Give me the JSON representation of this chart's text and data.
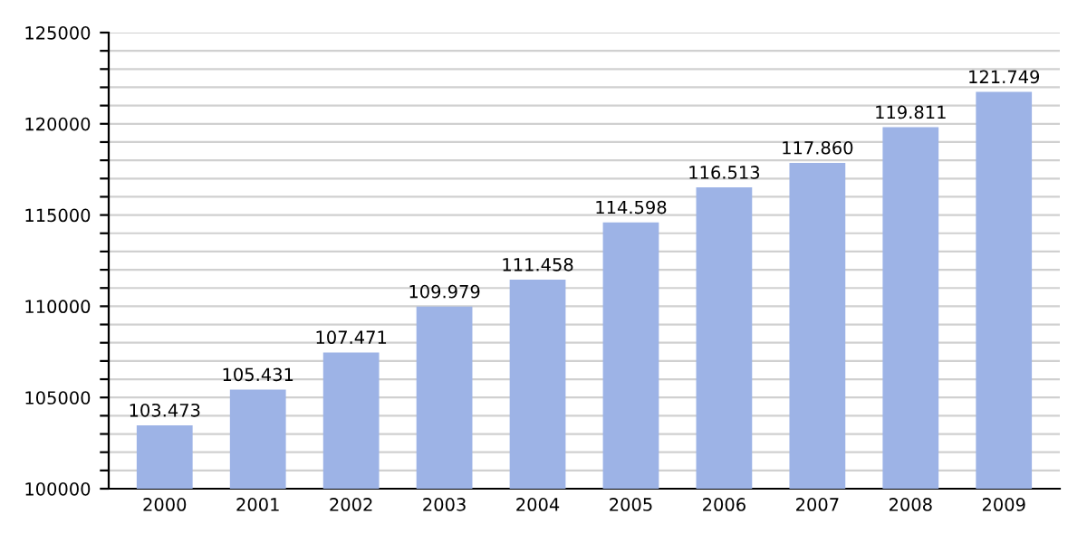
{
  "chart_data": {
    "type": "bar",
    "categories": [
      "2000",
      "2001",
      "2002",
      "2003",
      "2004",
      "2005",
      "2006",
      "2007",
      "2008",
      "2009"
    ],
    "values": [
      103473,
      105431,
      107471,
      109979,
      111458,
      114598,
      116513,
      117860,
      119811,
      121749
    ],
    "value_labels": [
      "103.473",
      "105.431",
      "107.471",
      "109.979",
      "111.458",
      "114.598",
      "116.513",
      "117.860",
      "119.811",
      "121.749"
    ],
    "color": "#9db3e6",
    "ylim": [
      100000,
      125000
    ],
    "yticks": [
      100000,
      {
        "value": 101000,
        "label": null
      },
      {
        "value": 102000,
        "label": null
      },
      {
        "value": 103000,
        "label": null
      },
      {
        "value": 104000,
        "label": null
      },
      105000,
      {
        "value": 106000,
        "label": null
      },
      {
        "value": 107000,
        "label": null
      },
      {
        "value": 108000,
        "label": null
      },
      {
        "value": 109000,
        "label": null
      },
      110000,
      {
        "value": 111000,
        "label": null
      },
      {
        "value": 112000,
        "label": null
      },
      {
        "value": 113000,
        "label": null
      },
      {
        "value": 114000,
        "label": null
      },
      115000,
      {
        "value": 116000,
        "label": null
      },
      {
        "value": 117000,
        "label": null
      },
      {
        "value": 118000,
        "label": null
      },
      {
        "value": 119000,
        "label": null
      },
      120000,
      {
        "value": 121000,
        "label": null
      },
      {
        "value": 122000,
        "label": null
      },
      {
        "value": 123000,
        "label": null
      },
      {
        "value": 124000,
        "label": null
      },
      125000
    ],
    "grid": "y"
  }
}
